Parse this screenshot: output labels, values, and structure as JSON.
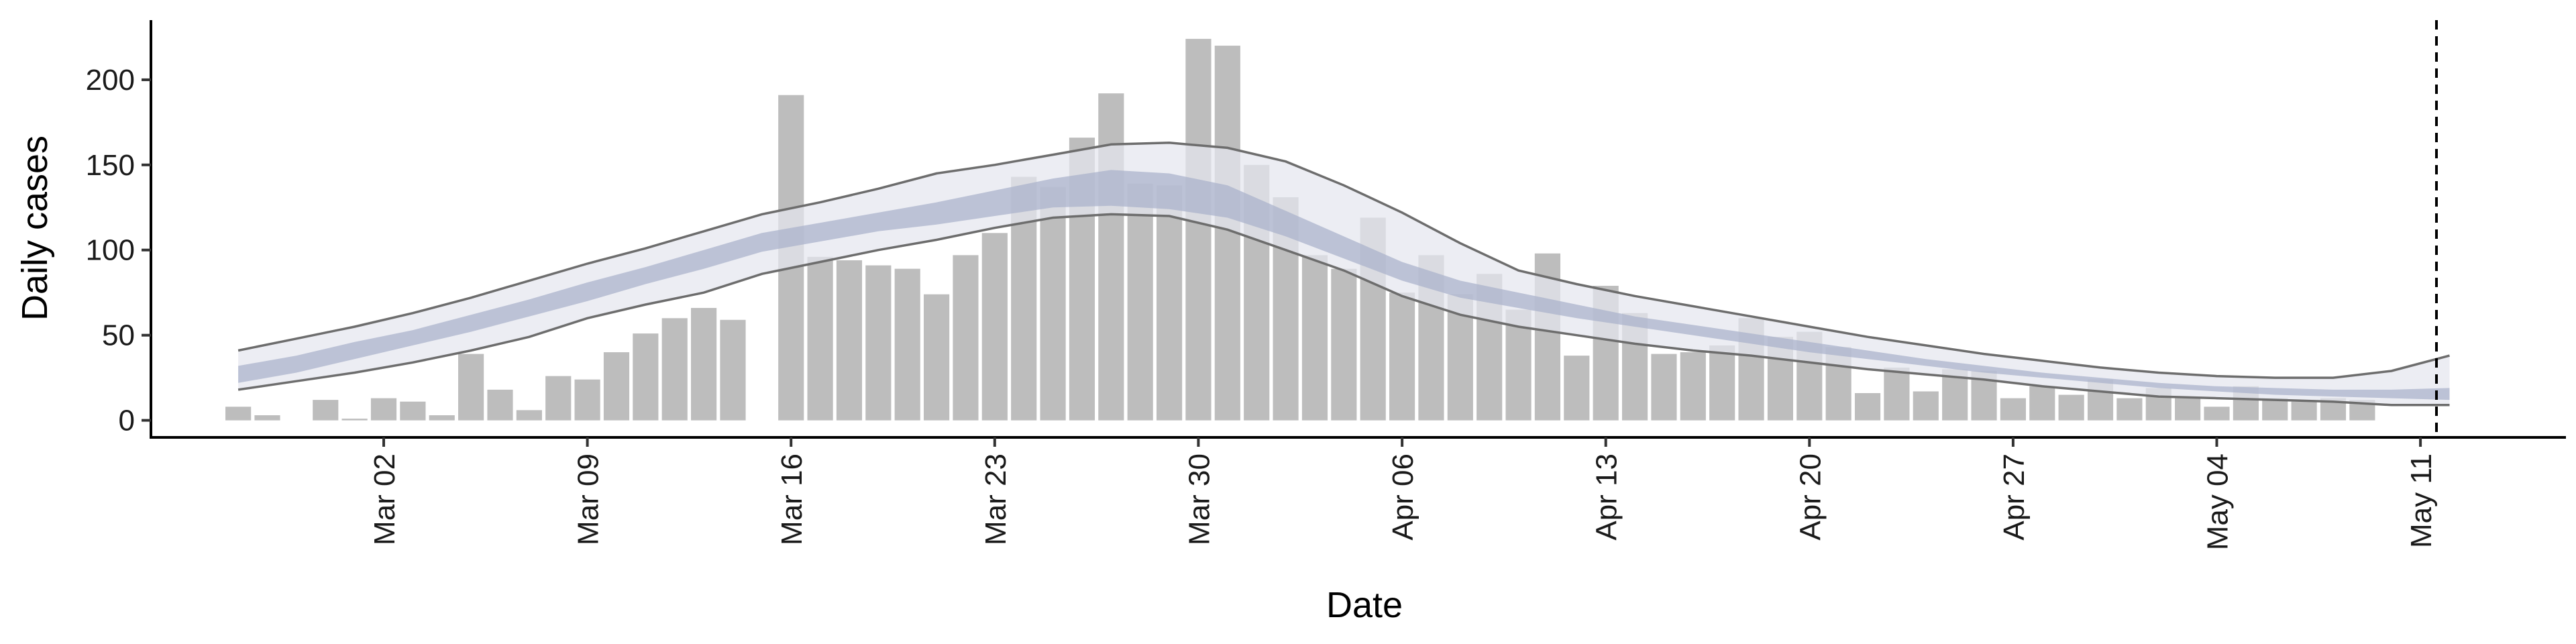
{
  "chart_data": {
    "type": "bar",
    "xlabel": "Date",
    "ylabel": "Daily cases",
    "ylim": [
      -10,
      235
    ],
    "y_ticks": [
      0,
      50,
      100,
      150,
      200
    ],
    "x_ticks": [
      {
        "date": "2020-03-02",
        "label": "Mar 02"
      },
      {
        "date": "2020-03-09",
        "label": "Mar 09"
      },
      {
        "date": "2020-03-16",
        "label": "Mar 16"
      },
      {
        "date": "2020-03-23",
        "label": "Mar 23"
      },
      {
        "date": "2020-03-30",
        "label": "Mar 30"
      },
      {
        "date": "2020-04-06",
        "label": "Apr 06"
      },
      {
        "date": "2020-04-13",
        "label": "Apr 13"
      },
      {
        "date": "2020-04-20",
        "label": "Apr 20"
      },
      {
        "date": "2020-04-27",
        "label": "Apr 27"
      },
      {
        "date": "2020-05-04",
        "label": "May 04"
      },
      {
        "date": "2020-05-11",
        "label": "May 11"
      }
    ],
    "xlim": [
      "2020-02-23",
      "2020-05-16"
    ],
    "grid": false,
    "legend": "none",
    "vline_date": "2020-05-11",
    "bars": {
      "start_date": "2020-02-26",
      "color": "#bdbdbd",
      "values": [
        8,
        3,
        0,
        12,
        1,
        13,
        11,
        3,
        39,
        18,
        6,
        26,
        24,
        40,
        51,
        60,
        66,
        59,
        0,
        191,
        96,
        94,
        91,
        89,
        74,
        97,
        110,
        143,
        137,
        166,
        192,
        139,
        138,
        224,
        220,
        150,
        131,
        97,
        89,
        119,
        75,
        97,
        74,
        86,
        65,
        98,
        38,
        79,
        63,
        39,
        40,
        44,
        60,
        49,
        52,
        43,
        16,
        31,
        17,
        30,
        29,
        13,
        20,
        15,
        24,
        13,
        19,
        13,
        8,
        20,
        13,
        11,
        13,
        12
      ]
    },
    "estimate": {
      "start_date": "2020-02-26",
      "end_date": "2020-05-04",
      "step_days": 2,
      "band_outer_color": "#e4e6ee",
      "band_inner_color": "#a9b1cb",
      "line_color": "#6d6d6d",
      "upper_90": [
        41,
        48,
        55,
        63,
        72,
        82,
        92,
        101,
        111,
        121,
        128,
        136,
        145,
        150,
        156,
        162,
        163,
        160,
        152,
        138,
        122,
        104,
        88,
        80,
        73,
        67,
        61,
        55,
        49,
        44,
        39,
        35,
        31,
        28,
        26,
        25,
        25,
        29,
        38
      ],
      "lower_90": [
        18,
        23,
        28,
        34,
        41,
        49,
        60,
        68,
        75,
        86,
        93,
        100,
        106,
        113,
        119,
        121,
        120,
        112,
        100,
        88,
        73,
        62,
        55,
        50,
        45,
        41,
        38,
        34,
        30,
        27,
        24,
        20,
        17,
        14,
        13,
        12,
        11,
        9,
        9
      ],
      "upper_50": [
        32,
        38,
        46,
        53,
        62,
        71,
        81,
        90,
        100,
        110,
        116,
        122,
        128,
        135,
        142,
        147,
        145,
        138,
        123,
        108,
        93,
        82,
        75,
        68,
        61,
        56,
        51,
        46,
        41,
        36,
        32,
        28,
        25,
        22,
        20,
        19,
        18,
        18,
        19
      ],
      "lower_50": [
        22,
        28,
        36,
        44,
        52,
        61,
        70,
        80,
        89,
        99,
        105,
        111,
        115,
        120,
        125,
        126,
        124,
        119,
        108,
        95,
        82,
        72,
        66,
        60,
        55,
        50,
        45,
        40,
        36,
        32,
        28,
        25,
        22,
        19,
        17,
        15,
        14,
        13,
        12
      ]
    }
  }
}
